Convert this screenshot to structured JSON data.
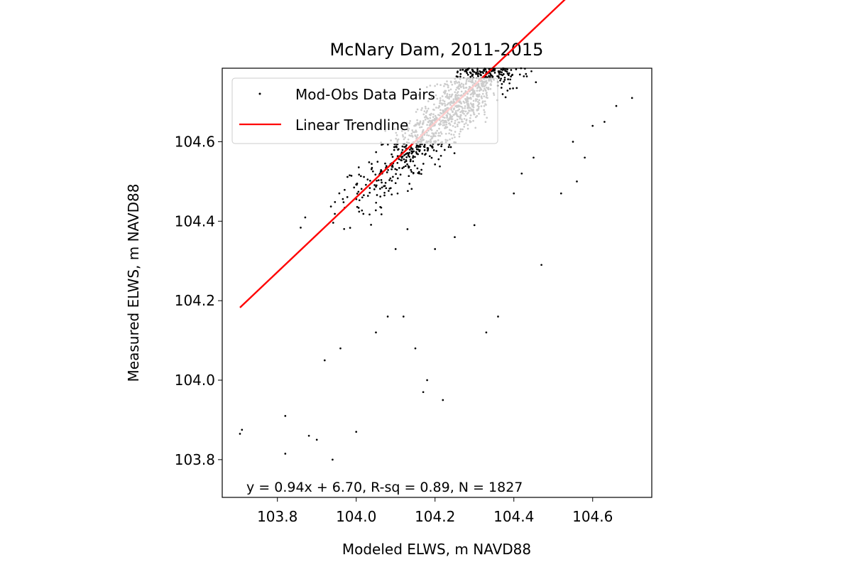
{
  "chart_data": {
    "type": "scatter",
    "title": "McNary Dam, 2011-2015",
    "xlabel": "Modeled ELWS, m NAVD88",
    "ylabel": "Measured ELWS, m NAVD88",
    "xlim": [
      103.66,
      104.75
    ],
    "ylim": [
      103.705,
      104.785
    ],
    "x_ticks": [
      103.8,
      104.0,
      104.2,
      104.4,
      104.6
    ],
    "y_ticks": [
      103.8,
      104.0,
      104.2,
      104.4,
      104.6
    ],
    "x_tick_labels": [
      "103.8",
      "104.0",
      "104.2",
      "104.4",
      "104.6"
    ],
    "y_tick_labels": [
      "103.8",
      "104.0",
      "104.2",
      "104.4",
      "104.6"
    ],
    "grid": false,
    "legend_position": "upper-left",
    "series": [
      {
        "name": "Mod-Obs Data Pairs",
        "type": "scatter",
        "color": "#000000",
        "marker": "point",
        "n": 1827
      },
      {
        "name": "Linear Trendline",
        "type": "line",
        "color": "#ff0000",
        "slope": 0.94,
        "intercept": 6.7,
        "x_range": [
          103.705,
          104.705
        ]
      }
    ],
    "annotation": "y = 0.94x + 6.70, R-sq = 0.89, N = 1827",
    "fit": {
      "slope": 0.94,
      "intercept": 6.7,
      "r_squared": 0.89,
      "n": 1827
    },
    "sample_points": [
      [
        103.705,
        103.865
      ],
      [
        103.71,
        103.875
      ],
      [
        103.82,
        103.91
      ],
      [
        103.82,
        103.815
      ],
      [
        103.94,
        103.8
      ],
      [
        103.9,
        103.85
      ],
      [
        103.88,
        103.86
      ],
      [
        103.92,
        104.05
      ],
      [
        103.96,
        104.08
      ],
      [
        104.0,
        103.87
      ],
      [
        104.05,
        104.12
      ],
      [
        104.08,
        104.16
      ],
      [
        104.12,
        104.16
      ],
      [
        104.15,
        104.08
      ],
      [
        104.17,
        103.97
      ],
      [
        104.22,
        103.95
      ],
      [
        104.18,
        104.0
      ],
      [
        104.2,
        104.33
      ],
      [
        104.25,
        104.36
      ],
      [
        104.3,
        104.39
      ],
      [
        104.33,
        104.12
      ],
      [
        104.36,
        104.16
      ],
      [
        104.4,
        104.47
      ],
      [
        104.42,
        104.52
      ],
      [
        104.45,
        104.56
      ],
      [
        104.47,
        104.29
      ],
      [
        104.55,
        104.6
      ],
      [
        104.58,
        104.56
      ],
      [
        104.6,
        104.64
      ],
      [
        104.63,
        104.65
      ],
      [
        104.66,
        104.69
      ],
      [
        104.7,
        104.71
      ],
      [
        104.56,
        104.5
      ],
      [
        104.52,
        104.47
      ],
      [
        104.13,
        104.38
      ],
      [
        104.1,
        104.33
      ]
    ]
  }
}
